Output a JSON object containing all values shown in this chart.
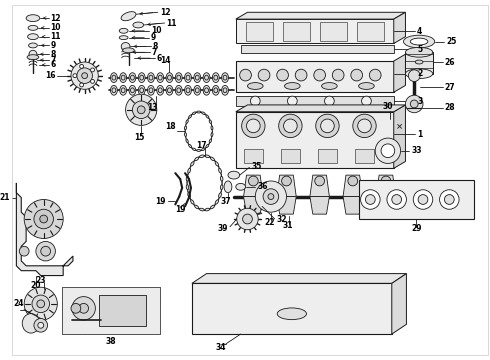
{
  "bg_color": "#ffffff",
  "lc": "#1a1a1a",
  "tc": "#000000",
  "fc": "#f0f0f0",
  "fc2": "#e0e0e0",
  "fc3": "#d0d0d0",
  "fig_width": 4.9,
  "fig_height": 3.6,
  "dpi": 100,
  "xlim": [
    0,
    490
  ],
  "ylim": [
    0,
    360
  ]
}
